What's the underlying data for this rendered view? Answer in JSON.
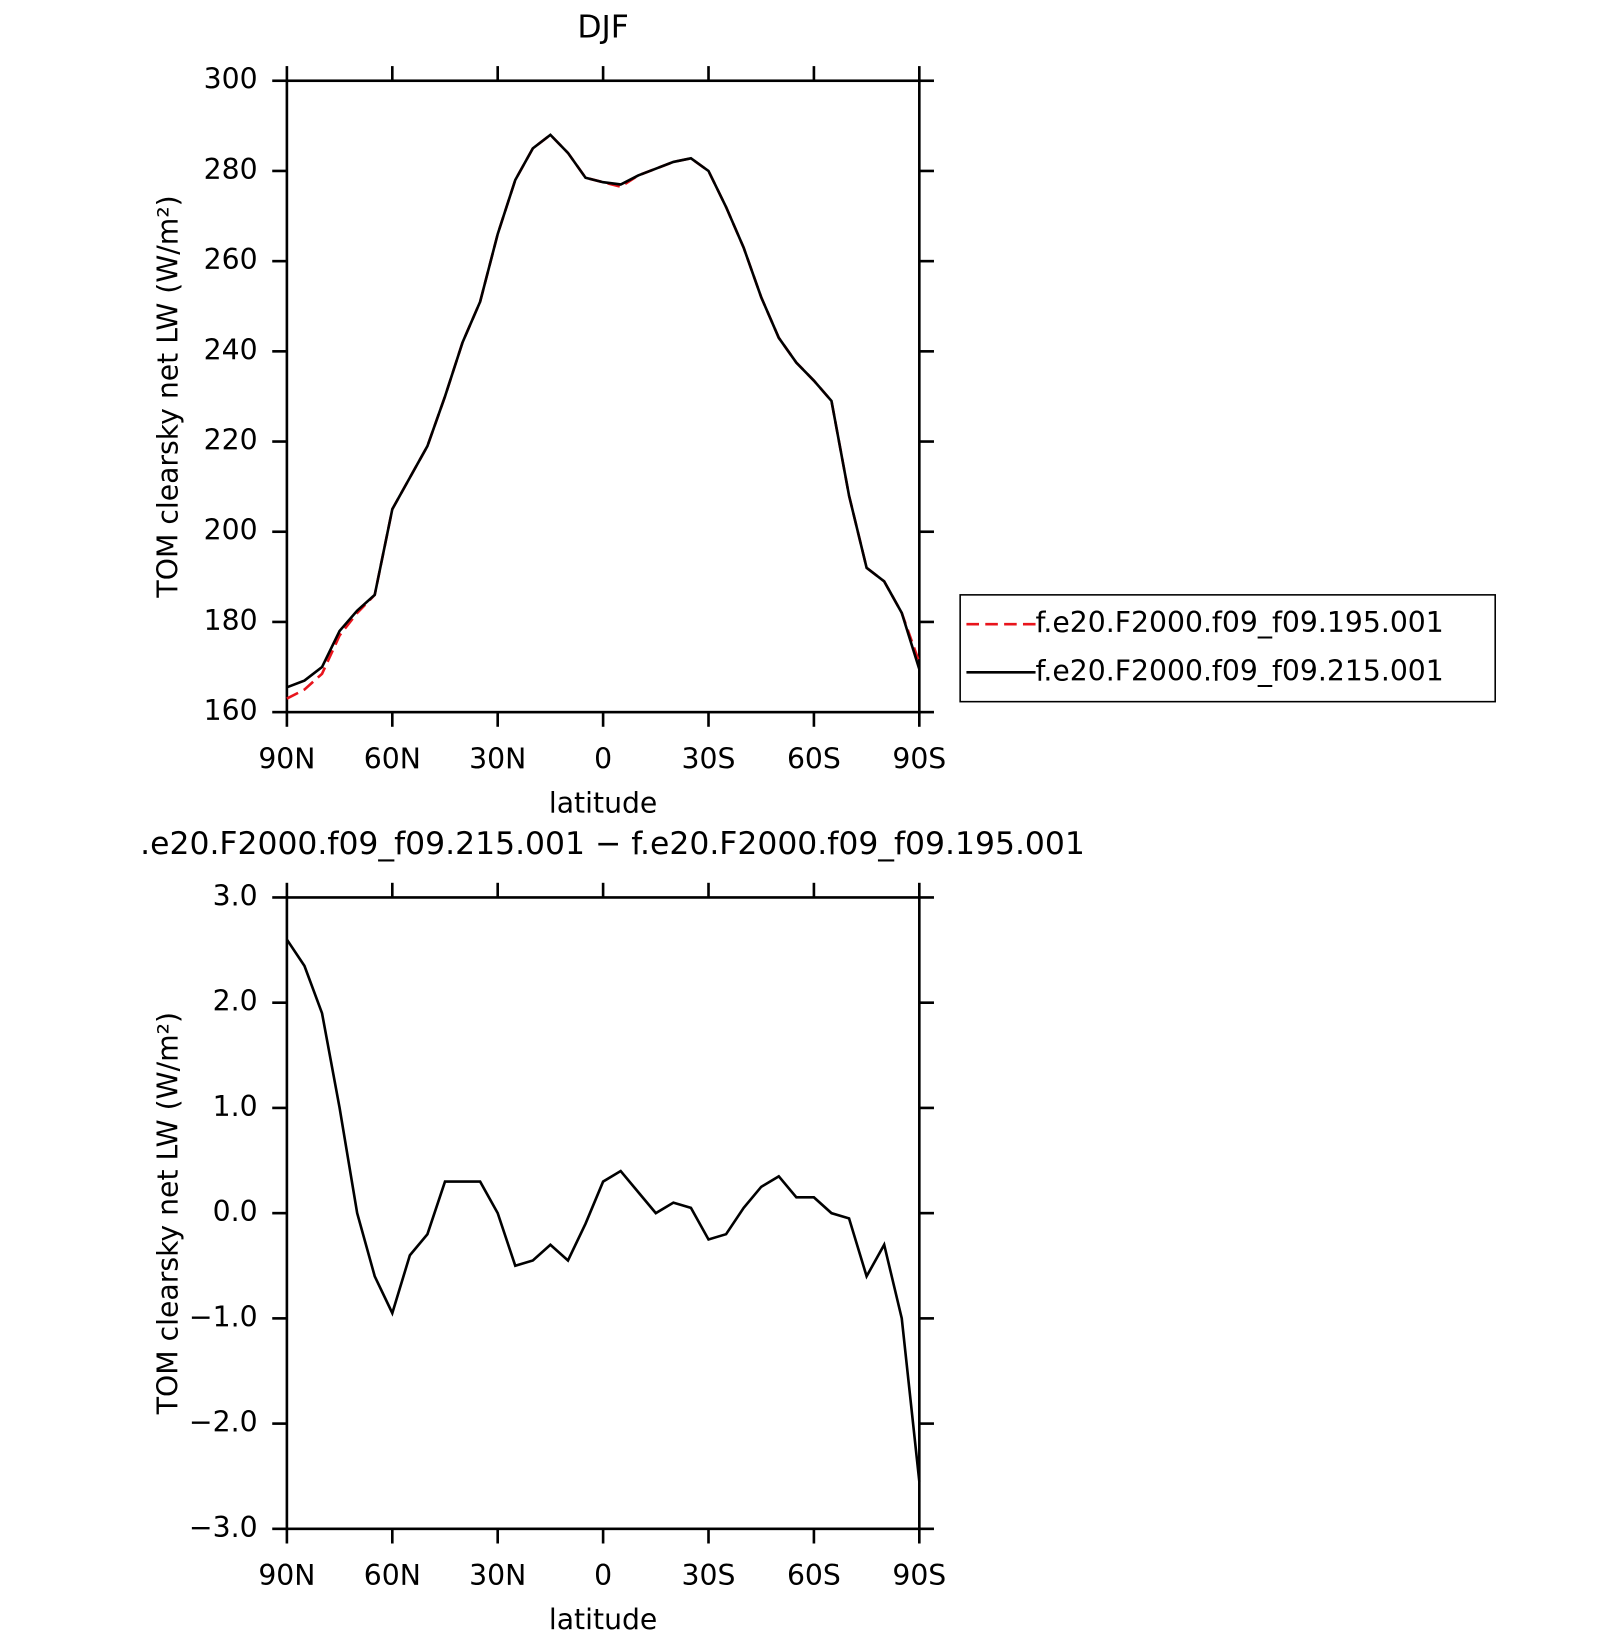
{
  "chart_data": [
    {
      "type": "line",
      "title": "DJF",
      "xlabel": "latitude",
      "ylabel": "TOM clearsky net LW (W/m²)",
      "x": [
        90,
        85,
        80,
        75,
        70,
        65,
        60,
        55,
        50,
        45,
        40,
        35,
        30,
        25,
        20,
        15,
        10,
        5,
        0,
        -5,
        -10,
        -15,
        -20,
        -25,
        -30,
        -35,
        -40,
        -45,
        -50,
        -55,
        -60,
        -65,
        -70,
        -75,
        -80,
        -85,
        -90
      ],
      "xlim": [
        90,
        -90
      ],
      "xticks": [
        {
          "value": 90,
          "label": "90N"
        },
        {
          "value": 60,
          "label": "60N"
        },
        {
          "value": 30,
          "label": "30N"
        },
        0,
        {
          "value": -30,
          "label": "30S"
        },
        {
          "value": -60,
          "label": "60S"
        },
        {
          "value": -90,
          "label": "90S"
        }
      ],
      "ylim": [
        160,
        300
      ],
      "yticks": [
        160,
        180,
        200,
        220,
        240,
        260,
        280,
        300
      ],
      "legend": "right",
      "series": [
        {
          "name": "f.e20.F2000.f09_f09.195.001",
          "color": "#e8141c",
          "dash": true,
          "values": [
            163,
            165,
            168.5,
            177,
            182,
            186,
            205,
            212,
            219,
            230,
            242,
            251,
            266,
            278,
            285,
            288,
            284,
            278.5,
            277.5,
            276.5,
            279,
            280.5,
            282,
            282.8,
            280,
            272,
            263,
            252,
            243,
            237.5,
            233.5,
            229,
            208,
            192,
            189,
            182,
            171
          ]
        },
        {
          "name": "f.e20.F2000.f09_f09.215.001",
          "color": "#000000",
          "dash": false,
          "values": [
            165.5,
            167,
            170,
            178,
            182.5,
            186,
            205,
            212,
            219,
            230,
            242,
            251,
            266,
            278,
            285,
            288,
            284,
            278.5,
            277.5,
            277,
            279,
            280.5,
            282,
            282.8,
            280,
            272,
            263,
            252,
            243,
            237.5,
            233.5,
            229,
            208,
            192,
            189,
            182,
            169.5
          ]
        }
      ]
    },
    {
      "type": "line",
      "title": ".e20.F2000.f09_f09.215.001 − f.e20.F2000.f09_f09.195.001",
      "xlabel": "latitude",
      "ylabel": "TOM clearsky net LW (W/m²)",
      "x": [
        90,
        85,
        80,
        75,
        70,
        65,
        60,
        55,
        50,
        45,
        40,
        35,
        30,
        25,
        20,
        15,
        10,
        5,
        0,
        -5,
        -10,
        -15,
        -20,
        -25,
        -30,
        -35,
        -40,
        -45,
        -50,
        -55,
        -60,
        -65,
        -70,
        -75,
        -80,
        -85,
        -90
      ],
      "xlim": [
        90,
        -90
      ],
      "xticks": [
        {
          "value": 90,
          "label": "90N"
        },
        {
          "value": 60,
          "label": "60N"
        },
        {
          "value": 30,
          "label": "30N"
        },
        0,
        {
          "value": -30,
          "label": "30S"
        },
        {
          "value": -60,
          "label": "60S"
        },
        {
          "value": -90,
          "label": "90S"
        }
      ],
      "ylim": [
        -3,
        3
      ],
      "yticks": [
        {
          "value": -3,
          "label": "−3.0"
        },
        {
          "value": -2,
          "label": "−2.0"
        },
        {
          "value": -1,
          "label": "−1.0"
        },
        {
          "value": 0,
          "label": "0.0"
        },
        {
          "value": 1,
          "label": "1.0"
        },
        {
          "value": 2,
          "label": "2.0"
        },
        {
          "value": 3,
          "label": "3.0"
        }
      ],
      "series": [
        {
          "color": "#000000",
          "dash": false,
          "values": [
            2.6,
            2.35,
            1.9,
            1.0,
            0.0,
            -0.6,
            -0.95,
            -0.4,
            -0.2,
            0.3,
            0.3,
            0.3,
            0.0,
            -0.5,
            -0.45,
            -0.3,
            -0.45,
            -0.1,
            0.3,
            0.4,
            0.2,
            0.0,
            0.1,
            0.05,
            -0.25,
            -0.2,
            0.05,
            0.25,
            0.35,
            0.15,
            0.15,
            0.0,
            -0.05,
            -0.6,
            -0.3,
            -1.0,
            -2.55
          ]
        }
      ]
    }
  ]
}
